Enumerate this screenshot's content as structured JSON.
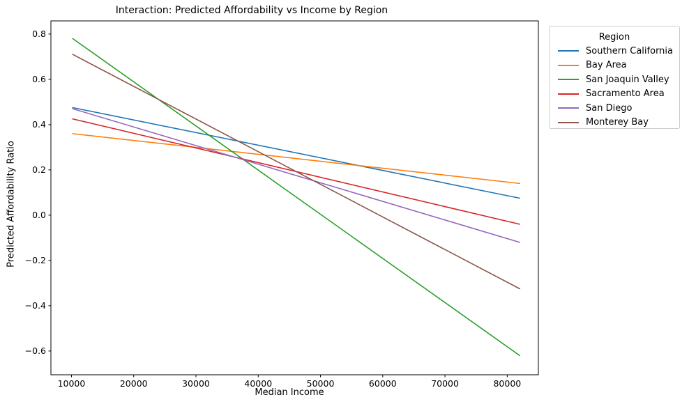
{
  "chart_data": {
    "type": "line",
    "title": "Interaction: Predicted Affordability vs Income by Region",
    "xlabel": "Median Income",
    "ylabel": "Predicted Affordability Ratio",
    "xlim": [
      6700,
      85000
    ],
    "ylim": [
      -0.705,
      0.858
    ],
    "x_ticks": [
      10000,
      20000,
      30000,
      40000,
      50000,
      60000,
      70000,
      80000
    ],
    "y_ticks": [
      -0.6,
      -0.4,
      -0.2,
      0.0,
      0.2,
      0.4,
      0.6,
      0.8
    ],
    "grid": false,
    "legend_title": "Region",
    "legend_position": "outside upper right",
    "x": [
      10200,
      82000
    ],
    "series": [
      {
        "name": "Southern California",
        "color": "#1f77b4",
        "values": [
          0.475,
          0.075
        ]
      },
      {
        "name": "Bay Area",
        "color": "#ff7f0e",
        "values": [
          0.36,
          0.14
        ]
      },
      {
        "name": "San Joaquin Valley",
        "color": "#2ca02c",
        "values": [
          0.78,
          -0.62
        ]
      },
      {
        "name": "Sacramento Area",
        "color": "#d62728",
        "values": [
          0.425,
          -0.04
        ]
      },
      {
        "name": "San Diego",
        "color": "#9467bd",
        "values": [
          0.47,
          -0.12
        ]
      },
      {
        "name": "Monterey Bay",
        "color": "#8c564b",
        "values": [
          0.71,
          -0.325
        ]
      }
    ]
  }
}
